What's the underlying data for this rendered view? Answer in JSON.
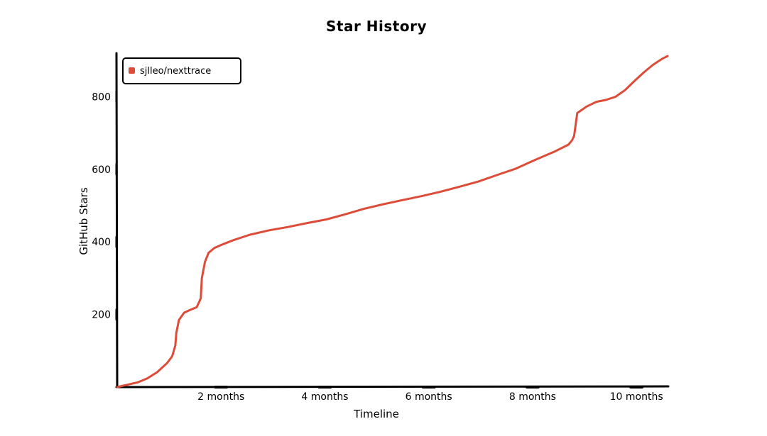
{
  "chart_data": {
    "type": "line",
    "title": "Star History",
    "xlabel": "Timeline",
    "ylabel": "GitHub Stars",
    "x_unit": "months",
    "xlim": [
      0,
      10.6
    ],
    "ylim": [
      0,
      920
    ],
    "x_ticks": [
      {
        "value": 2,
        "label": "2 months"
      },
      {
        "value": 4,
        "label": "4 months"
      },
      {
        "value": 6,
        "label": "6 months"
      },
      {
        "value": 8,
        "label": "8 months"
      },
      {
        "value": 10,
        "label": "10 months"
      }
    ],
    "y_ticks": [
      {
        "value": 200,
        "label": "200"
      },
      {
        "value": 400,
        "label": "400"
      },
      {
        "value": 600,
        "label": "600"
      },
      {
        "value": 800,
        "label": "800"
      }
    ],
    "grid": false,
    "legend": {
      "placement": "top-left"
    },
    "series": [
      {
        "name": "sjlleo/nexttrace",
        "color": "#dd4b39",
        "x": [
          0,
          0.18,
          0.4,
          0.58,
          0.77,
          0.96,
          1.06,
          1.12,
          1.14,
          1.19,
          1.29,
          1.41,
          1.53,
          1.58,
          1.61,
          1.63,
          1.69,
          1.76,
          1.87,
          2.01,
          2.24,
          2.56,
          2.93,
          3.29,
          3.66,
          4.03,
          4.39,
          4.75,
          5.13,
          5.49,
          5.86,
          6.22,
          6.59,
          6.95,
          7.31,
          7.68,
          8.05,
          8.41,
          8.69,
          8.76,
          8.8,
          8.86,
          9.04,
          9.23,
          9.41,
          9.6,
          9.78,
          9.96,
          10.15,
          10.32,
          10.5,
          10.6
        ],
        "y": [
          0,
          6,
          13,
          24,
          41,
          66,
          85,
          115,
          150,
          185,
          205,
          213,
          220,
          235,
          245,
          300,
          345,
          370,
          383,
          392,
          405,
          420,
          432,
          441,
          452,
          462,
          476,
          491,
          504,
          515,
          526,
          538,
          552,
          566,
          584,
          602,
          626,
          648,
          668,
          680,
          692,
          755,
          773,
          786,
          791,
          800,
          818,
          843,
          868,
          888,
          905,
          912
        ]
      }
    ]
  }
}
